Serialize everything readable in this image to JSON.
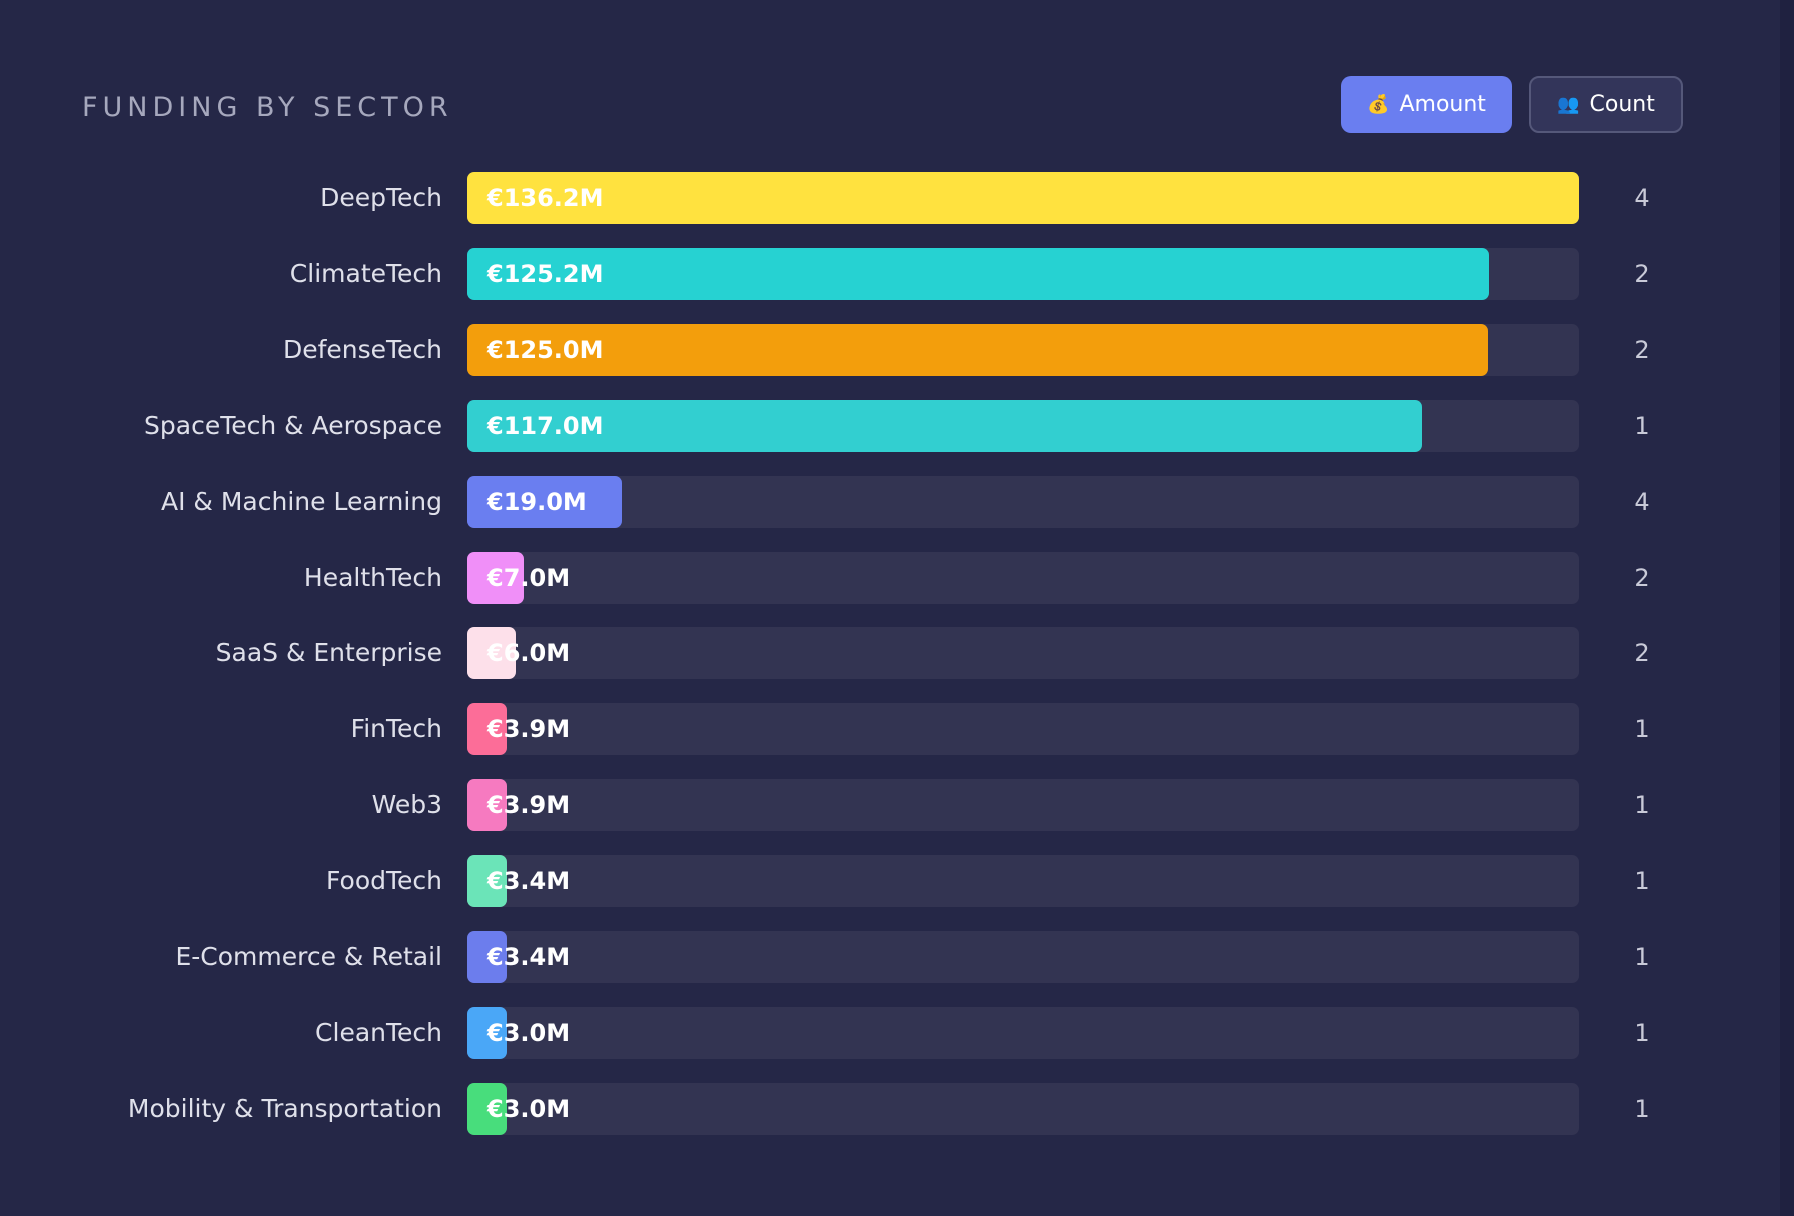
{
  "title": "FUNDING BY SECTOR",
  "toggle": {
    "amount": {
      "label": "Amount",
      "icon": "money-bag-icon",
      "active": true,
      "color": "#6a7ef0"
    },
    "count": {
      "label": "Count",
      "icon": "people-icon",
      "active": false
    }
  },
  "chart_data": {
    "type": "bar",
    "orientation": "horizontal",
    "title": "FUNDING BY SECTOR",
    "categories": [
      "DeepTech",
      "ClimateTech",
      "DefenseTech",
      "SpaceTech & Aerospace",
      "AI & Machine Learning",
      "HealthTech",
      "SaaS & Enterprise",
      "FinTech",
      "Web3",
      "FoodTech",
      "E-Commerce & Retail",
      "CleanTech",
      "Mobility & Transportation"
    ],
    "values": [
      136.2,
      125.2,
      125.0,
      117.0,
      19.0,
      7.0,
      6.0,
      3.9,
      3.9,
      3.4,
      3.4,
      3.0,
      3.0
    ],
    "value_labels": [
      "€136.2M",
      "€125.2M",
      "€125.0M",
      "€117.0M",
      "€19.0M",
      "€7.0M",
      "€6.0M",
      "€3.9M",
      "€3.9M",
      "€3.4M",
      "€3.4M",
      "€3.0M",
      "€3.0M"
    ],
    "counts": [
      "4",
      "2",
      "2",
      "1",
      "4",
      "2",
      "2",
      "1",
      "1",
      "1",
      "1",
      "1",
      "1"
    ],
    "colors": [
      "#ffe23f",
      "#26d2d2",
      "#f39e0c",
      "#32cfd0",
      "#6a7ef0",
      "#f08ff8",
      "#fde0ea",
      "#fc6d98",
      "#f67ac0",
      "#6be4b8",
      "#6c7ded",
      "#4aa7f7",
      "#48dd7c"
    ],
    "unit": "€M",
    "xlim": [
      0,
      136.2
    ],
    "grid": false,
    "legend": "none"
  }
}
